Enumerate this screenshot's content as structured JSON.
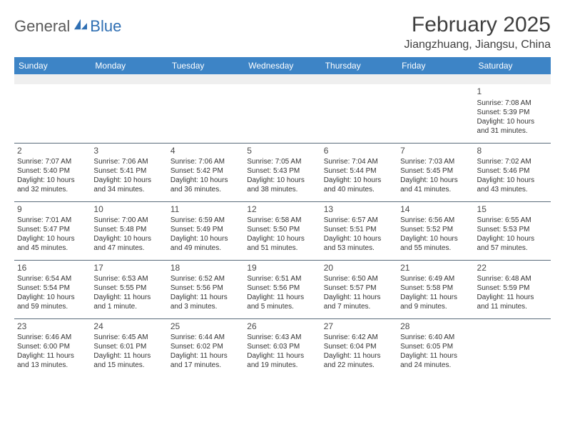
{
  "logo": {
    "part1": "General",
    "part2": "Blue"
  },
  "title": "February 2025",
  "location": "Jiangzhuang, Jiangsu, China",
  "colors": {
    "header_bg": "#3d84c6",
    "header_fg": "#ffffff",
    "border": "#5a6b7a",
    "blank_bg": "#efefef",
    "logo_gray": "#5a5a5a",
    "logo_blue": "#2f6fb3"
  },
  "day_headers": [
    "Sunday",
    "Monday",
    "Tuesday",
    "Wednesday",
    "Thursday",
    "Friday",
    "Saturday"
  ],
  "weeks": [
    [
      null,
      null,
      null,
      null,
      null,
      null,
      {
        "n": "1",
        "sr": "Sunrise: 7:08 AM",
        "ss": "Sunset: 5:39 PM",
        "d1": "Daylight: 10 hours",
        "d2": "and 31 minutes."
      }
    ],
    [
      {
        "n": "2",
        "sr": "Sunrise: 7:07 AM",
        "ss": "Sunset: 5:40 PM",
        "d1": "Daylight: 10 hours",
        "d2": "and 32 minutes."
      },
      {
        "n": "3",
        "sr": "Sunrise: 7:06 AM",
        "ss": "Sunset: 5:41 PM",
        "d1": "Daylight: 10 hours",
        "d2": "and 34 minutes."
      },
      {
        "n": "4",
        "sr": "Sunrise: 7:06 AM",
        "ss": "Sunset: 5:42 PM",
        "d1": "Daylight: 10 hours",
        "d2": "and 36 minutes."
      },
      {
        "n": "5",
        "sr": "Sunrise: 7:05 AM",
        "ss": "Sunset: 5:43 PM",
        "d1": "Daylight: 10 hours",
        "d2": "and 38 minutes."
      },
      {
        "n": "6",
        "sr": "Sunrise: 7:04 AM",
        "ss": "Sunset: 5:44 PM",
        "d1": "Daylight: 10 hours",
        "d2": "and 40 minutes."
      },
      {
        "n": "7",
        "sr": "Sunrise: 7:03 AM",
        "ss": "Sunset: 5:45 PM",
        "d1": "Daylight: 10 hours",
        "d2": "and 41 minutes."
      },
      {
        "n": "8",
        "sr": "Sunrise: 7:02 AM",
        "ss": "Sunset: 5:46 PM",
        "d1": "Daylight: 10 hours",
        "d2": "and 43 minutes."
      }
    ],
    [
      {
        "n": "9",
        "sr": "Sunrise: 7:01 AM",
        "ss": "Sunset: 5:47 PM",
        "d1": "Daylight: 10 hours",
        "d2": "and 45 minutes."
      },
      {
        "n": "10",
        "sr": "Sunrise: 7:00 AM",
        "ss": "Sunset: 5:48 PM",
        "d1": "Daylight: 10 hours",
        "d2": "and 47 minutes."
      },
      {
        "n": "11",
        "sr": "Sunrise: 6:59 AM",
        "ss": "Sunset: 5:49 PM",
        "d1": "Daylight: 10 hours",
        "d2": "and 49 minutes."
      },
      {
        "n": "12",
        "sr": "Sunrise: 6:58 AM",
        "ss": "Sunset: 5:50 PM",
        "d1": "Daylight: 10 hours",
        "d2": "and 51 minutes."
      },
      {
        "n": "13",
        "sr": "Sunrise: 6:57 AM",
        "ss": "Sunset: 5:51 PM",
        "d1": "Daylight: 10 hours",
        "d2": "and 53 minutes."
      },
      {
        "n": "14",
        "sr": "Sunrise: 6:56 AM",
        "ss": "Sunset: 5:52 PM",
        "d1": "Daylight: 10 hours",
        "d2": "and 55 minutes."
      },
      {
        "n": "15",
        "sr": "Sunrise: 6:55 AM",
        "ss": "Sunset: 5:53 PM",
        "d1": "Daylight: 10 hours",
        "d2": "and 57 minutes."
      }
    ],
    [
      {
        "n": "16",
        "sr": "Sunrise: 6:54 AM",
        "ss": "Sunset: 5:54 PM",
        "d1": "Daylight: 10 hours",
        "d2": "and 59 minutes."
      },
      {
        "n": "17",
        "sr": "Sunrise: 6:53 AM",
        "ss": "Sunset: 5:55 PM",
        "d1": "Daylight: 11 hours",
        "d2": "and 1 minute."
      },
      {
        "n": "18",
        "sr": "Sunrise: 6:52 AM",
        "ss": "Sunset: 5:56 PM",
        "d1": "Daylight: 11 hours",
        "d2": "and 3 minutes."
      },
      {
        "n": "19",
        "sr": "Sunrise: 6:51 AM",
        "ss": "Sunset: 5:56 PM",
        "d1": "Daylight: 11 hours",
        "d2": "and 5 minutes."
      },
      {
        "n": "20",
        "sr": "Sunrise: 6:50 AM",
        "ss": "Sunset: 5:57 PM",
        "d1": "Daylight: 11 hours",
        "d2": "and 7 minutes."
      },
      {
        "n": "21",
        "sr": "Sunrise: 6:49 AM",
        "ss": "Sunset: 5:58 PM",
        "d1": "Daylight: 11 hours",
        "d2": "and 9 minutes."
      },
      {
        "n": "22",
        "sr": "Sunrise: 6:48 AM",
        "ss": "Sunset: 5:59 PM",
        "d1": "Daylight: 11 hours",
        "d2": "and 11 minutes."
      }
    ],
    [
      {
        "n": "23",
        "sr": "Sunrise: 6:46 AM",
        "ss": "Sunset: 6:00 PM",
        "d1": "Daylight: 11 hours",
        "d2": "and 13 minutes."
      },
      {
        "n": "24",
        "sr": "Sunrise: 6:45 AM",
        "ss": "Sunset: 6:01 PM",
        "d1": "Daylight: 11 hours",
        "d2": "and 15 minutes."
      },
      {
        "n": "25",
        "sr": "Sunrise: 6:44 AM",
        "ss": "Sunset: 6:02 PM",
        "d1": "Daylight: 11 hours",
        "d2": "and 17 minutes."
      },
      {
        "n": "26",
        "sr": "Sunrise: 6:43 AM",
        "ss": "Sunset: 6:03 PM",
        "d1": "Daylight: 11 hours",
        "d2": "and 19 minutes."
      },
      {
        "n": "27",
        "sr": "Sunrise: 6:42 AM",
        "ss": "Sunset: 6:04 PM",
        "d1": "Daylight: 11 hours",
        "d2": "and 22 minutes."
      },
      {
        "n": "28",
        "sr": "Sunrise: 6:40 AM",
        "ss": "Sunset: 6:05 PM",
        "d1": "Daylight: 11 hours",
        "d2": "and 24 minutes."
      },
      null
    ]
  ]
}
